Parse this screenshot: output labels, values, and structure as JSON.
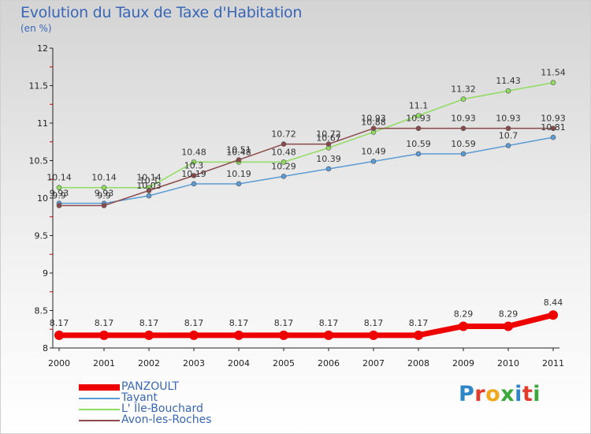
{
  "header": {
    "title": "Evolution du Taux de Taxe d'Habitation",
    "subtitle": "(en %)"
  },
  "logo": {
    "letters": [
      "P",
      "r",
      "o",
      "x",
      "i",
      "t",
      "i"
    ],
    "colors": [
      "#2e86c8",
      "#e03c2c",
      "#f0a81c",
      "#3aa83a",
      "#2e86c8",
      "#e03c2c",
      "#3aa83a"
    ]
  },
  "chart_data": {
    "type": "line",
    "title": "Evolution du Taux de Taxe d'Habitation",
    "subtitle": "(en %)",
    "x": [
      "2000",
      "2001",
      "2002",
      "2003",
      "2004",
      "2005",
      "2006",
      "2007",
      "2008",
      "2009",
      "2010",
      "2011"
    ],
    "ylim": [
      8,
      12
    ],
    "yticks": [
      "8",
      "8.5",
      "9",
      "9.5",
      "10",
      "10.5",
      "11",
      "11.5",
      "12"
    ],
    "grid": false,
    "legend_position": "bottom-left",
    "series": [
      {
        "name": "PANZOULT",
        "color": "#ee0000",
        "values": [
          8.17,
          8.17,
          8.17,
          8.17,
          8.17,
          8.17,
          8.17,
          8.17,
          8.17,
          8.29,
          8.29,
          8.44
        ],
        "labels": [
          "8.17",
          "8.17",
          "8.17",
          "8.17",
          "8.17",
          "8.17",
          "8.17",
          "8.17",
          "8.17",
          "8.29",
          "8.29",
          "8.44"
        ]
      },
      {
        "name": "Tavant",
        "color": "#5b9bd5",
        "values": [
          9.93,
          9.93,
          10.03,
          10.19,
          10.19,
          10.29,
          10.39,
          10.49,
          10.59,
          10.59,
          10.7,
          10.81
        ],
        "labels": [
          "9.93",
          "9.93",
          "10.03",
          "10.19",
          "10.19",
          "10.29",
          "10.39",
          "10.49",
          "10.59",
          "10.59",
          "10.7",
          "10.81"
        ]
      },
      {
        "name": "L' Île-Bouchard",
        "color": "#8fdc5e",
        "values": [
          10.14,
          10.14,
          10.14,
          10.48,
          10.48,
          10.48,
          10.67,
          10.88,
          11.1,
          11.32,
          11.43,
          11.54
        ],
        "labels": [
          "10.14",
          "10.14",
          "10.14",
          "10.48",
          "10.48",
          "10.48",
          "10.67",
          "10.88",
          "11.1",
          "11.32",
          "11.43",
          "11.54"
        ]
      },
      {
        "name": "Avon-les-Roches",
        "color": "#8b4a4a",
        "values": [
          9.9,
          9.9,
          10.1,
          10.3,
          10.51,
          10.72,
          10.72,
          10.93,
          10.93,
          10.93,
          10.93,
          10.93
        ],
        "labels": [
          "9.9",
          "9.9",
          "10.1",
          "10.3",
          "10.51",
          "10.72",
          "10.72",
          "10.93",
          "10.93",
          "10.93",
          "10.93",
          "10.93"
        ]
      }
    ]
  }
}
